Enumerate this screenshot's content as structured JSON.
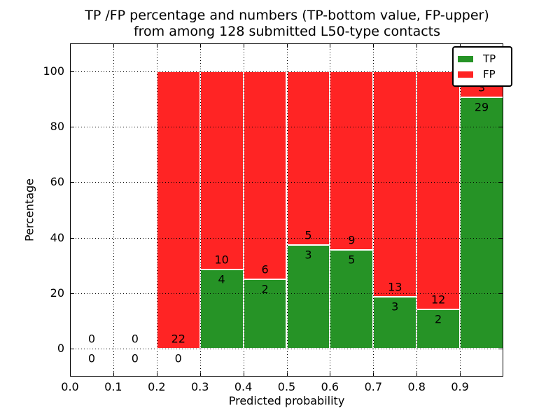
{
  "chart_data": {
    "type": "bar",
    "stacked": true,
    "title_lines": [
      "TP /FP percentage and numbers (TP-bottom value, FP-upper)",
      "from among 128 submitted L50-type contacts"
    ],
    "xlabel": "Predicted probability",
    "ylabel": "Percentage",
    "total_contacts": 128,
    "bin_edges": [
      0.0,
      0.1,
      0.2,
      0.3,
      0.4,
      0.5,
      0.6,
      0.7,
      0.8,
      0.9,
      1.0
    ],
    "series": [
      {
        "name": "TP",
        "color": "#269326",
        "counts": [
          0,
          0,
          0,
          4,
          2,
          3,
          5,
          3,
          2,
          29
        ]
      },
      {
        "name": "FP",
        "color": "#ff2424",
        "counts": [
          0,
          0,
          22,
          10,
          6,
          5,
          9,
          13,
          12,
          3
        ]
      }
    ],
    "tp_percent_by_bin": [
      null,
      null,
      0.0,
      28.6,
      25.0,
      37.5,
      35.7,
      18.8,
      14.3,
      90.6
    ],
    "bar_total_percent": 100,
    "xticks": [
      "0.0",
      "0.1",
      "0.2",
      "0.3",
      "0.4",
      "0.5",
      "0.6",
      "0.7",
      "0.8",
      "0.9"
    ],
    "yticks": [
      0,
      20,
      40,
      60,
      80,
      100
    ],
    "xlim": [
      0.0,
      1.0
    ],
    "ylim": [
      -10,
      110
    ],
    "grid": "dotted",
    "legend": {
      "position": "upper right",
      "entries": [
        "TP",
        "FP"
      ]
    }
  }
}
